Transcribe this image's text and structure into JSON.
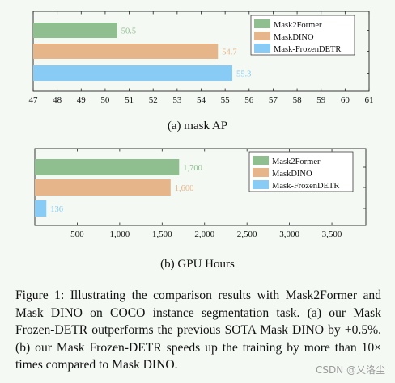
{
  "chart_data": [
    {
      "type": "bar",
      "orientation": "horizontal",
      "categories": [
        "Mask2Former",
        "MaskDINO",
        "Mask-FrozenDETR"
      ],
      "values": [
        50.5,
        54.7,
        55.3
      ],
      "value_labels": [
        "50.5",
        "54.7",
        "55.3"
      ],
      "xlim": [
        47,
        61
      ],
      "xticks": [
        "47",
        "48",
        "49",
        "50",
        "51",
        "52",
        "53",
        "54",
        "55",
        "56",
        "57",
        "58",
        "59",
        "60",
        "61"
      ],
      "legend": [
        "Mask2Former",
        "MaskDINO",
        "Mask-FrozenDETR"
      ],
      "legend_position": "top-right",
      "colors": [
        "#8fbf8f",
        "#e6b58a",
        "#88ccf5"
      ],
      "label_colors": [
        "#8fbf8f",
        "#e6b58a",
        "#88ccf5"
      ],
      "grid": false,
      "caption": "(a) mask AP"
    },
    {
      "type": "bar",
      "orientation": "horizontal",
      "categories": [
        "Mask2Former",
        "MaskDINO",
        "Mask-FrozenDETR"
      ],
      "values": [
        1700,
        1600,
        136
      ],
      "value_labels": [
        "1,700",
        "1,600",
        "136"
      ],
      "xlim": [
        0,
        3900
      ],
      "xticks": [
        "500",
        "1,000",
        "1,500",
        "2,000",
        "2,500",
        "3,000",
        "3,500"
      ],
      "xtick_values": [
        500,
        1000,
        1500,
        2000,
        2500,
        3000,
        3500
      ],
      "legend": [
        "Mask2Former",
        "MaskDINO",
        "Mask-FrozenDETR"
      ],
      "legend_position": "top-right",
      "colors": [
        "#8fbf8f",
        "#e6b58a",
        "#88ccf5"
      ],
      "label_colors": [
        "#8fbf8f",
        "#e6b58a",
        "#88ccf5"
      ],
      "grid": false,
      "caption": "(b) GPU Hours"
    }
  ],
  "figure_caption": "Figure 1: Illustrating the comparison results with Mask2Former and Mask DINO on COCO instance segmentation task. (a) our Mask Frozen-DETR outperforms the previous SOTA Mask DINO by +0.5%. (b) our Mask Frozen-DETR speeds up the training by more than 10× times compared to Mask DINO.",
  "watermark": "CSDN @乂洛尘"
}
